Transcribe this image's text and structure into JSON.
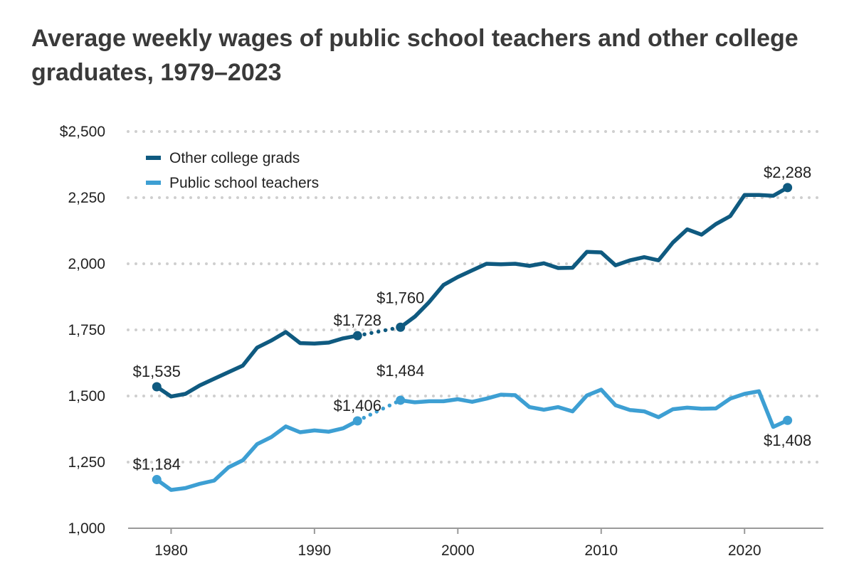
{
  "chart_data": {
    "type": "line",
    "title": "Average weekly wages of public school teachers and other college graduates, 1979–2023",
    "xlabel": "",
    "ylabel": "",
    "xlim": [
      1977,
      2025.5
    ],
    "ylim": [
      1000,
      2500
    ],
    "x_ticks": [
      1980,
      1990,
      2000,
      2010,
      2020
    ],
    "x_tick_labels": [
      "1980",
      "1990",
      "2000",
      "2010",
      "2020"
    ],
    "y_ticks": [
      1000,
      1250,
      1500,
      1750,
      2000,
      2250,
      2500
    ],
    "y_tick_labels": [
      "1,000",
      "1,250",
      "1,500",
      "1,750",
      "2,000",
      "2,250",
      "$2,500"
    ],
    "grid": "horizontal dotted",
    "legend_position": "top-left",
    "gap": {
      "from": 1993,
      "to": 1996,
      "style": "dotted"
    },
    "series": [
      {
        "name": "Other college grads",
        "color": "#0f5a80",
        "x": [
          1979,
          1980,
          1981,
          1982,
          1983,
          1984,
          1985,
          1986,
          1987,
          1988,
          1989,
          1990,
          1991,
          1992,
          1993,
          1996,
          1997,
          1998,
          1999,
          2000,
          2001,
          2002,
          2003,
          2004,
          2005,
          2006,
          2007,
          2008,
          2009,
          2010,
          2011,
          2012,
          2013,
          2014,
          2015,
          2016,
          2017,
          2018,
          2019,
          2020,
          2021,
          2022,
          2023
        ],
        "values": [
          1535,
          1498,
          1508,
          1540,
          1565,
          1590,
          1615,
          1683,
          1710,
          1742,
          1700,
          1698,
          1702,
          1718,
          1728,
          1760,
          1800,
          1855,
          1920,
          1950,
          1975,
          2000,
          1998,
          2000,
          1992,
          2002,
          1984,
          1985,
          2045,
          2043,
          1994,
          2013,
          2025,
          2013,
          2080,
          2130,
          2110,
          2150,
          2180,
          2260,
          2260,
          2257,
          2288
        ],
        "point_labels": [
          {
            "x": 1979,
            "text": "$1,535",
            "pos": "above"
          },
          {
            "x": 1993,
            "text": "$1,728",
            "pos": "above"
          },
          {
            "x": 1996,
            "text": "$1,760",
            "pos": "above-left"
          },
          {
            "x": 2023,
            "text": "$2,288",
            "pos": "above"
          }
        ]
      },
      {
        "name": "Public school teachers",
        "color": "#3d9fd3",
        "x": [
          1979,
          1980,
          1981,
          1982,
          1983,
          1984,
          1985,
          1986,
          1987,
          1988,
          1989,
          1990,
          1991,
          1992,
          1993,
          1996,
          1997,
          1998,
          1999,
          2000,
          2001,
          2002,
          2003,
          2004,
          2005,
          2006,
          2007,
          2008,
          2009,
          2010,
          2011,
          2012,
          2013,
          2014,
          2015,
          2016,
          2017,
          2018,
          2019,
          2020,
          2021,
          2022,
          2023
        ],
        "values": [
          1184,
          1145,
          1152,
          1168,
          1180,
          1230,
          1257,
          1318,
          1345,
          1385,
          1363,
          1370,
          1365,
          1378,
          1406,
          1484,
          1476,
          1480,
          1480,
          1488,
          1478,
          1490,
          1505,
          1503,
          1458,
          1448,
          1458,
          1442,
          1502,
          1524,
          1465,
          1447,
          1442,
          1420,
          1450,
          1456,
          1452,
          1453,
          1490,
          1508,
          1518,
          1383,
          1408
        ],
        "point_labels": [
          {
            "x": 1979,
            "text": "$1,184",
            "pos": "above"
          },
          {
            "x": 1993,
            "text": "$1,406",
            "pos": "above"
          },
          {
            "x": 1996,
            "text": "$1,484",
            "pos": "above-left"
          },
          {
            "x": 2023,
            "text": "$1,408",
            "pos": "below"
          }
        ]
      }
    ]
  }
}
